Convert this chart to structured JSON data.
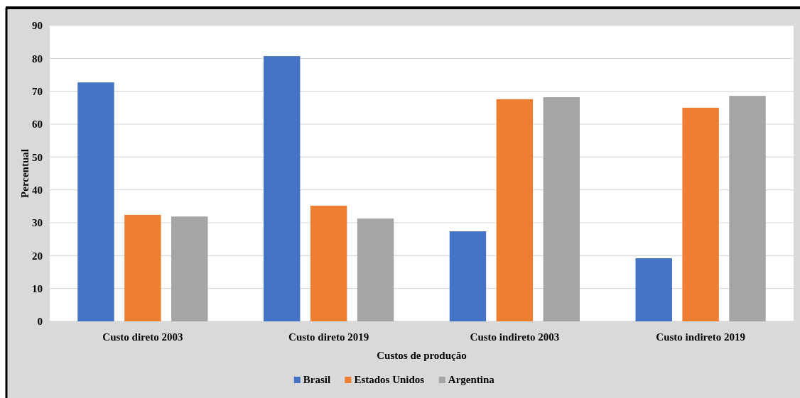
{
  "chart_data": {
    "type": "bar",
    "xlabel": "Custos de produção",
    "ylabel": "Percentual",
    "categories": [
      "Custo direto 2003",
      "Custo direto 2019",
      "Custo indireto 2003",
      "Custo indireto 2019"
    ],
    "series": [
      {
        "name": "Brasil",
        "color": "#4472c4",
        "values": [
          72.7,
          80.7,
          27.4,
          19.2
        ]
      },
      {
        "name": "Estados Unidos",
        "color": "#ed7d31",
        "values": [
          32.4,
          35.2,
          67.6,
          65.0
        ]
      },
      {
        "name": "Argentina",
        "color": "#a5a5a5",
        "values": [
          31.9,
          31.3,
          68.2,
          68.6
        ]
      }
    ],
    "ylim": [
      0,
      90
    ],
    "yticks": [
      0,
      10,
      20,
      30,
      40,
      50,
      60,
      70,
      80,
      90
    ],
    "grid": "y",
    "legend": "bottom"
  }
}
